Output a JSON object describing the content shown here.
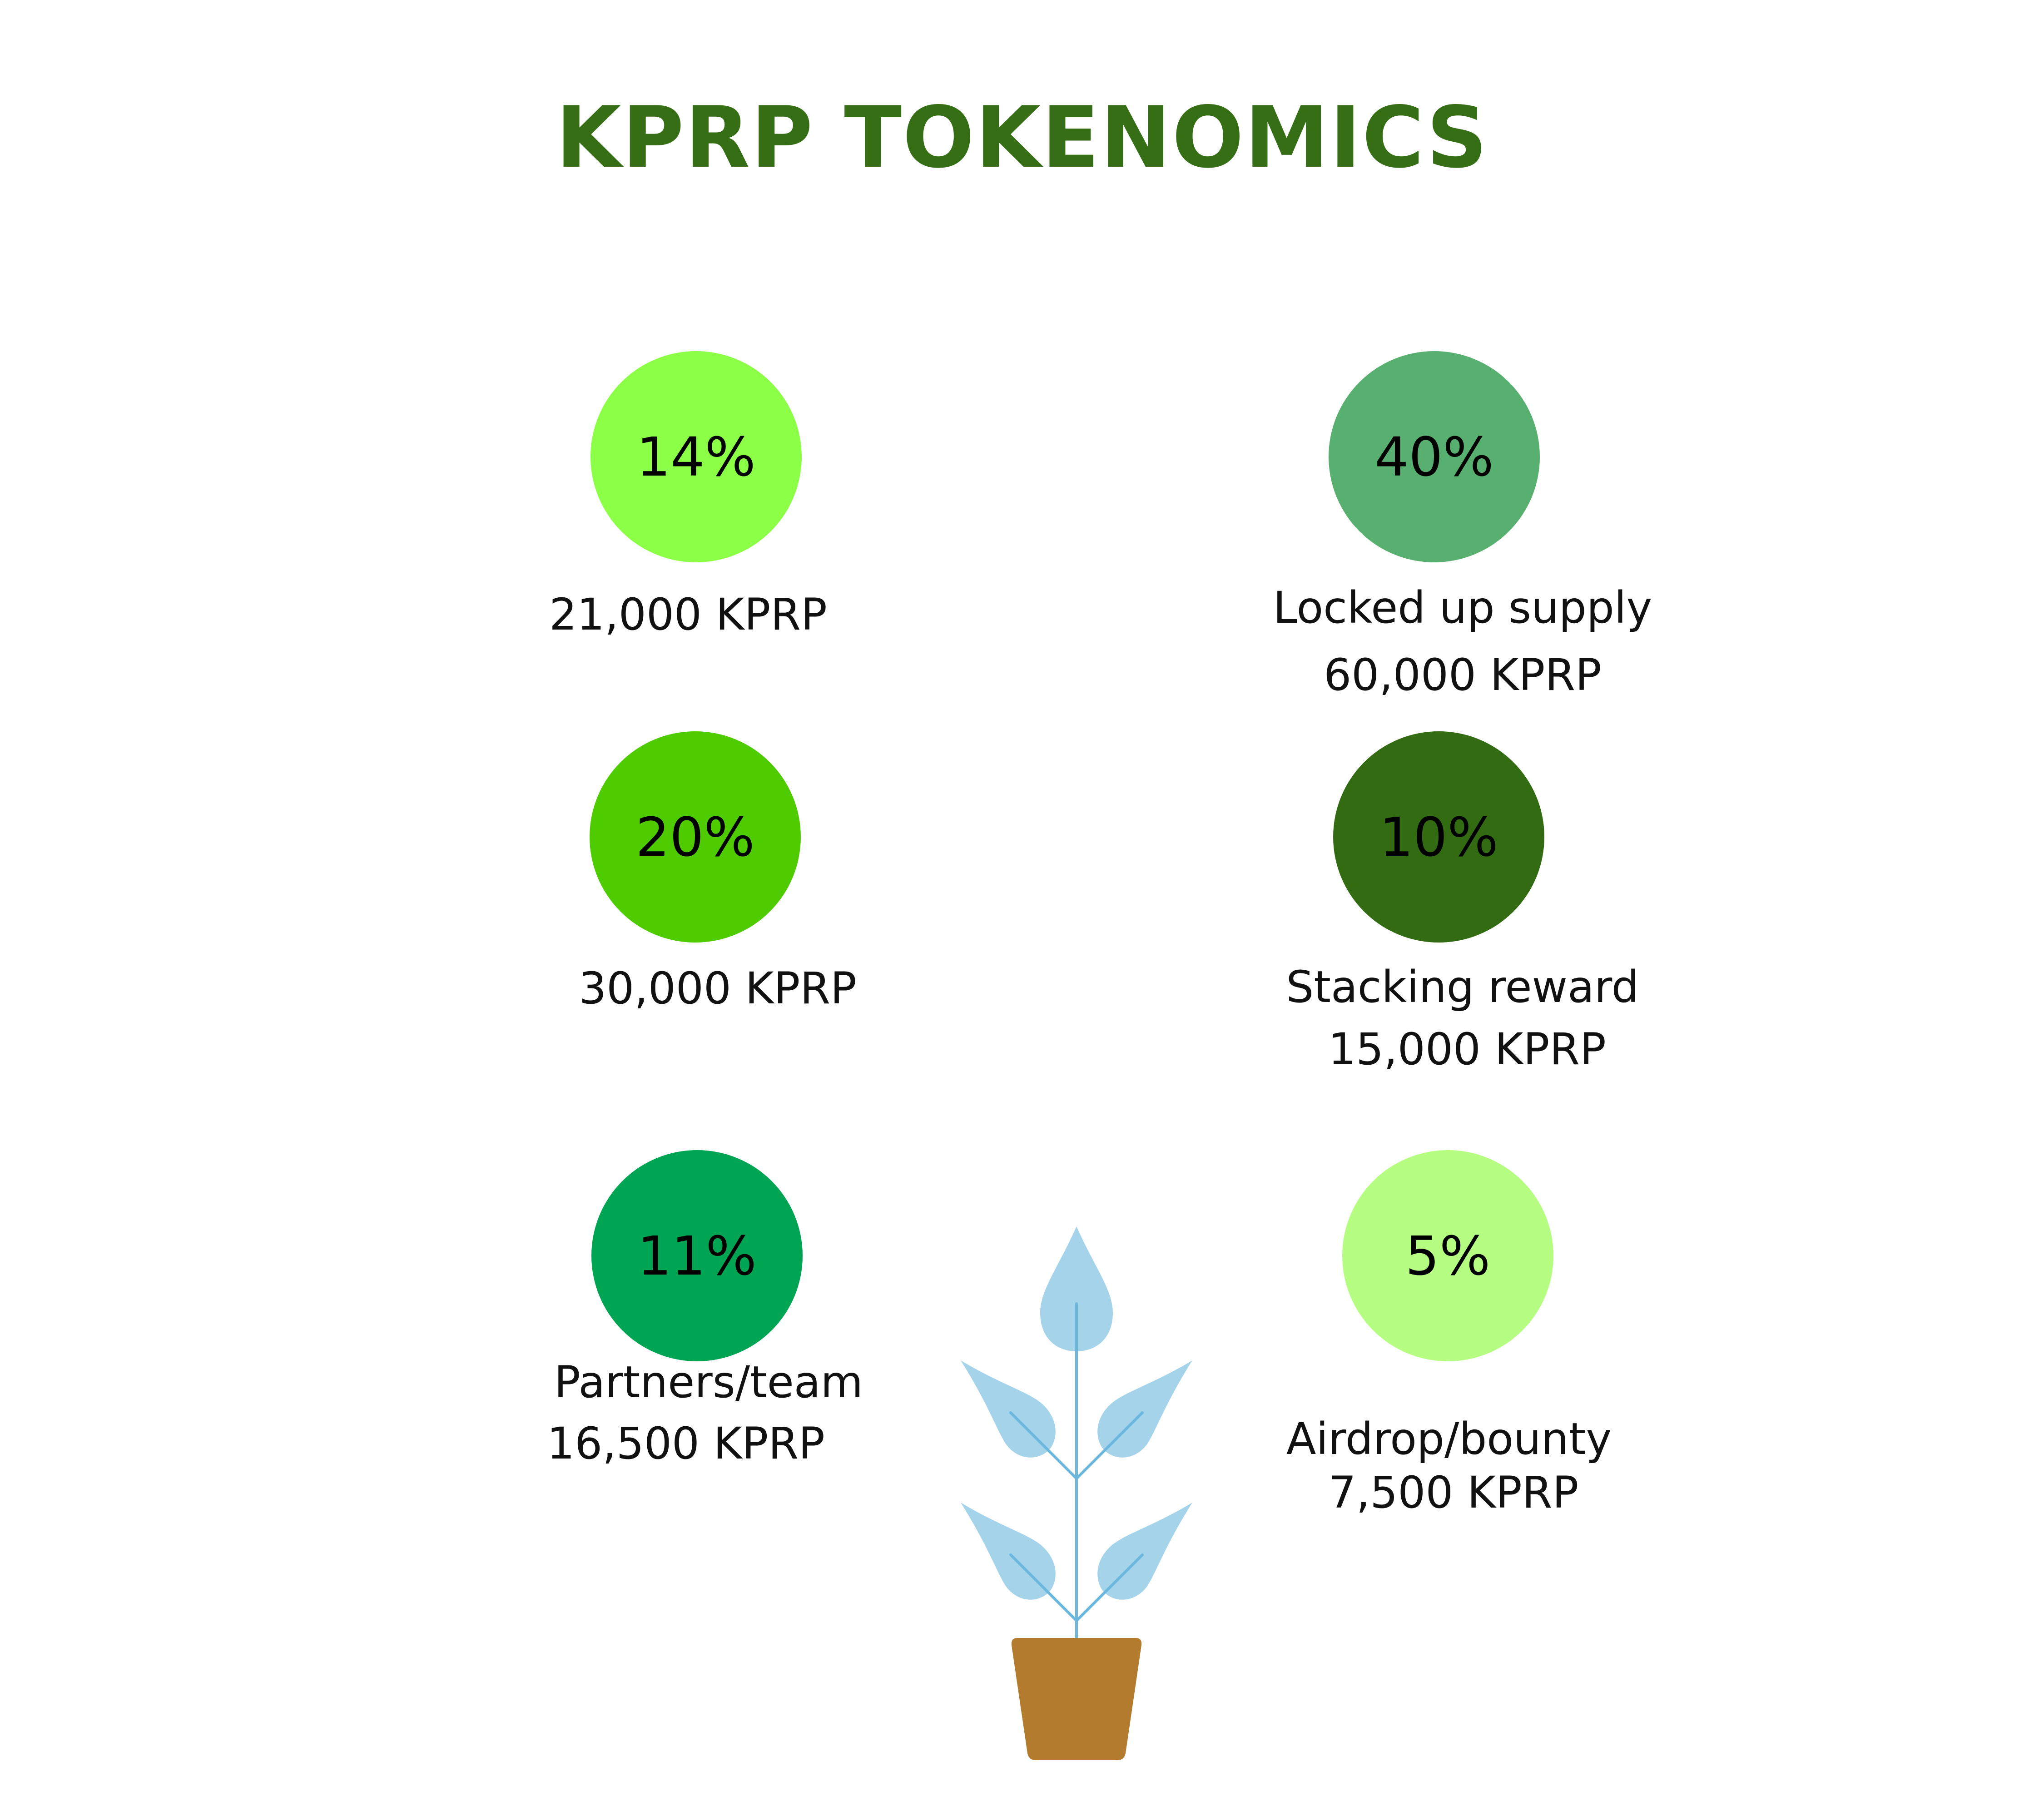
{
  "title": "KPRP TOKENOMICS",
  "colors": {
    "title": "#356e14",
    "leaf": "#a5d4ea",
    "stem": "#6bb7dd",
    "pot": "#b37b2e"
  },
  "allocations": [
    {
      "percent": "14%",
      "category": "",
      "amount": "21,000 KPRP",
      "color": "#8cff47"
    },
    {
      "percent": "40%",
      "category": "Locked up supply",
      "amount": "60,000 KPRP",
      "color": "#58b070"
    },
    {
      "percent": "20%",
      "category": "",
      "amount": "30,000 KPRP",
      "color": "#4fcc00"
    },
    {
      "percent": "10%",
      "category": "Stacking reward",
      "amount": "15,000 KPRP",
      "color": "#336b12"
    },
    {
      "percent": "11%",
      "category": "Partners/team",
      "amount": "16,500 KPRP",
      "color": "#00a553"
    },
    {
      "percent": "5%",
      "category": "Airdrop/bounty",
      "amount": "7,500 KPRP",
      "color": "#b5fe82"
    }
  ],
  "decoration": {
    "icon": "potted-plant-icon"
  }
}
